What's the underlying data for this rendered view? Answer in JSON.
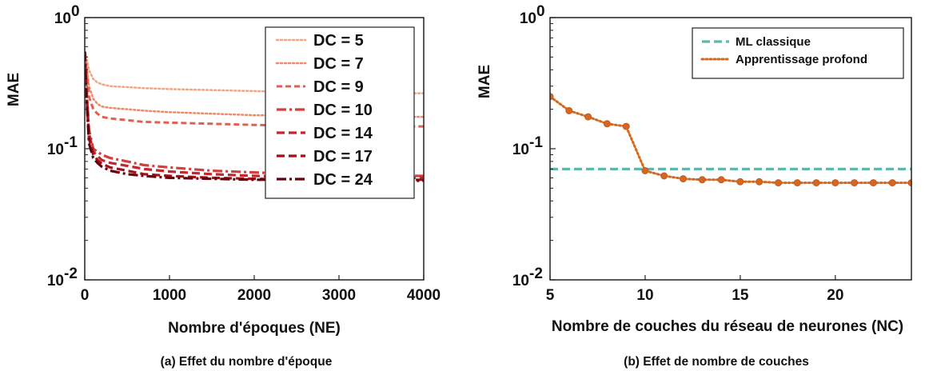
{
  "chart_data": [
    {
      "type": "line",
      "caption": "(a) Effet du nombre d'époque",
      "xlabel": "Nombre d'époques (NE)",
      "ylabel": "MAE",
      "xlim": [
        0,
        4000
      ],
      "ylim": [
        0.01,
        1
      ],
      "yscale": "log",
      "x_ticks": [
        "0",
        "1000",
        "2000",
        "3000",
        "4000"
      ],
      "y_ticks": [
        {
          "base": "10",
          "exp": "0"
        },
        {
          "base": "10",
          "exp": "-1"
        },
        {
          "base": "10",
          "exp": "-2"
        }
      ],
      "grid": false,
      "legend_position": "top-right",
      "x": [
        0,
        20,
        50,
        100,
        150,
        200,
        300,
        500,
        700,
        1000,
        1500,
        2000,
        2500,
        3000,
        3500,
        4000
      ],
      "series": [
        {
          "name": "DC = 5",
          "color": "#f4a582",
          "style": "dotted",
          "values": [
            0.55,
            0.5,
            0.4,
            0.34,
            0.32,
            0.31,
            0.3,
            0.295,
            0.29,
            0.285,
            0.28,
            0.275,
            0.27,
            0.27,
            0.265,
            0.265
          ]
        },
        {
          "name": "DC = 7",
          "color": "#ee8a68",
          "style": "dotted",
          "values": [
            0.55,
            0.45,
            0.3,
            0.24,
            0.22,
            0.21,
            0.205,
            0.2,
            0.195,
            0.19,
            0.185,
            0.18,
            0.18,
            0.178,
            0.175,
            0.175
          ]
        },
        {
          "name": "DC = 9",
          "color": "#e0614f",
          "style": "dashed-short",
          "values": [
            0.55,
            0.4,
            0.25,
            0.2,
            0.185,
            0.175,
            0.17,
            0.165,
            0.16,
            0.158,
            0.155,
            0.152,
            0.15,
            0.15,
            0.148,
            0.148
          ]
        },
        {
          "name": "DC = 10",
          "color": "#d33f3c",
          "style": "dashdot",
          "values": [
            0.55,
            0.3,
            0.14,
            0.1,
            0.095,
            0.09,
            0.085,
            0.08,
            0.075,
            0.072,
            0.068,
            0.066,
            0.064,
            0.063,
            0.062,
            0.062
          ]
        },
        {
          "name": "DC = 14",
          "color": "#c1272d",
          "style": "dashed",
          "values": [
            0.55,
            0.28,
            0.13,
            0.095,
            0.088,
            0.082,
            0.078,
            0.074,
            0.07,
            0.067,
            0.064,
            0.062,
            0.061,
            0.06,
            0.06,
            0.06
          ]
        },
        {
          "name": "DC = 17",
          "color": "#a50f15",
          "style": "dashed",
          "values": [
            0.55,
            0.26,
            0.12,
            0.09,
            0.082,
            0.077,
            0.072,
            0.068,
            0.064,
            0.062,
            0.06,
            0.059,
            0.058,
            0.058,
            0.058,
            0.058
          ]
        },
        {
          "name": "DC = 24",
          "color": "#67000d",
          "style": "dashdot",
          "values": [
            0.55,
            0.25,
            0.11,
            0.085,
            0.078,
            0.073,
            0.068,
            0.064,
            0.062,
            0.06,
            0.059,
            0.058,
            0.058,
            0.057,
            0.057,
            0.057
          ]
        }
      ]
    },
    {
      "type": "line",
      "caption": "(b) Effet de nombre de couches",
      "xlabel": "Nombre de couches du réseau de neurones (NC)",
      "ylabel": "MAE",
      "xlim": [
        5,
        24
      ],
      "ylim": [
        0.01,
        1
      ],
      "yscale": "log",
      "x_ticks": [
        "5",
        "10",
        "15",
        "20"
      ],
      "y_ticks": [
        {
          "base": "10",
          "exp": "0"
        },
        {
          "base": "10",
          "exp": "-1"
        },
        {
          "base": "10",
          "exp": "-2"
        }
      ],
      "grid": false,
      "legend_position": "top-right",
      "x": [
        5,
        6,
        7,
        8,
        9,
        10,
        11,
        12,
        13,
        14,
        15,
        16,
        17,
        18,
        19,
        20,
        21,
        22,
        23,
        24
      ],
      "series": [
        {
          "name": "ML classique",
          "color": "#5fb8b0",
          "style": "dashed",
          "values": [
            0.07,
            0.07,
            0.07,
            0.07,
            0.07,
            0.07,
            0.07,
            0.07,
            0.07,
            0.07,
            0.07,
            0.07,
            0.07,
            0.07,
            0.07,
            0.07,
            0.07,
            0.07,
            0.07,
            0.07
          ]
        },
        {
          "name": "Apprentissage profond",
          "color": "#d2691e",
          "style": "dotted-markers",
          "values": [
            0.25,
            0.195,
            0.175,
            0.155,
            0.148,
            0.068,
            0.062,
            0.059,
            0.058,
            0.058,
            0.056,
            0.056,
            0.055,
            0.055,
            0.055,
            0.055,
            0.055,
            0.055,
            0.055,
            0.055
          ]
        }
      ]
    }
  ]
}
